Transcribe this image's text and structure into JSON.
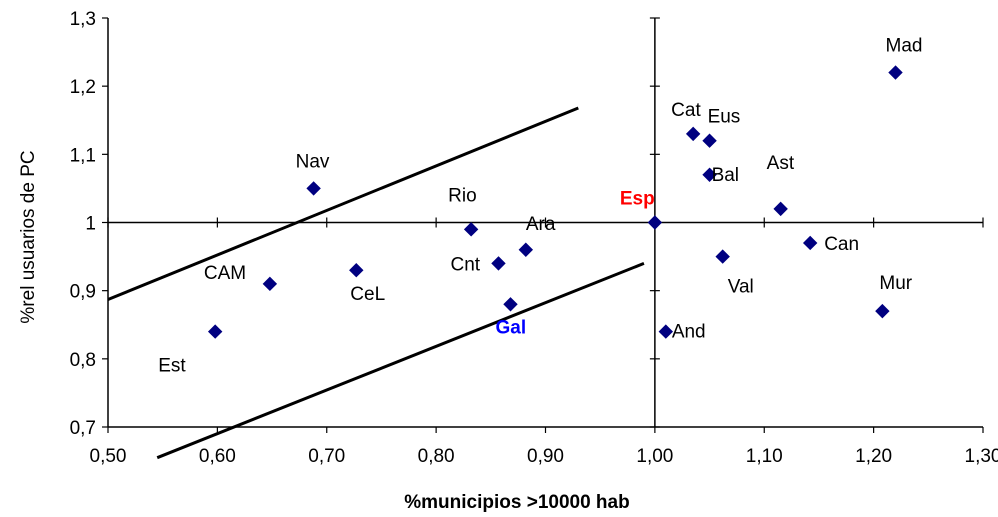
{
  "chart_data": {
    "type": "scatter",
    "xlabel": "%municipios >10000 hab",
    "ylabel": "%rel usuarios de PC",
    "xlim": [
      0.5,
      1.3
    ],
    "ylim": [
      0.7,
      1.3
    ],
    "x_tick_labels": [
      "0,50",
      "0,60",
      "0,70",
      "0,80",
      "0,90",
      "1,00",
      "1,10",
      "1,20",
      "1,30"
    ],
    "y_tick_labels": [
      "0,7",
      "0,8",
      "0,9",
      "1",
      "1,1",
      "1,2",
      "1,3"
    ],
    "grid": false,
    "marker_color": "#000080",
    "points": [
      {
        "label": "Mad",
        "x": 1.22,
        "y": 1.22
      },
      {
        "label": "Cat",
        "x": 1.035,
        "y": 1.13
      },
      {
        "label": "Eus",
        "x": 1.05,
        "y": 1.12
      },
      {
        "label": "Bal",
        "x": 1.05,
        "y": 1.07
      },
      {
        "label": "Ast",
        "x": 1.115,
        "y": 1.02
      },
      {
        "label": "Esp",
        "x": 1.0,
        "y": 1.0,
        "label_color": "#ff0000",
        "bold": true
      },
      {
        "label": "Can",
        "x": 1.142,
        "y": 0.97
      },
      {
        "label": "Val",
        "x": 1.062,
        "y": 0.95
      },
      {
        "label": "Mur",
        "x": 1.208,
        "y": 0.87
      },
      {
        "label": "And",
        "x": 1.01,
        "y": 0.84
      },
      {
        "label": "Nav",
        "x": 0.688,
        "y": 1.05
      },
      {
        "label": "Rio",
        "x": 0.832,
        "y": 0.99
      },
      {
        "label": "Ara",
        "x": 0.882,
        "y": 0.96
      },
      {
        "label": "Cnt",
        "x": 0.857,
        "y": 0.94
      },
      {
        "label": "CeL",
        "x": 0.727,
        "y": 0.93
      },
      {
        "label": "CAM",
        "x": 0.648,
        "y": 0.91
      },
      {
        "label": "Gal",
        "x": 0.868,
        "y": 0.88,
        "label_color": "#0000ff",
        "bold": true
      },
      {
        "label": "Est",
        "x": 0.598,
        "y": 0.84
      }
    ],
    "reference_lines": [
      {
        "x": 1.0
      },
      {
        "y": 1.0
      }
    ],
    "trend_lines": [
      {
        "x1": 0.5,
        "y1": 0.887,
        "x2": 0.93,
        "y2": 1.168
      },
      {
        "x1": 0.545,
        "y1": 0.655,
        "x2": 0.99,
        "y2": 0.94
      }
    ]
  }
}
